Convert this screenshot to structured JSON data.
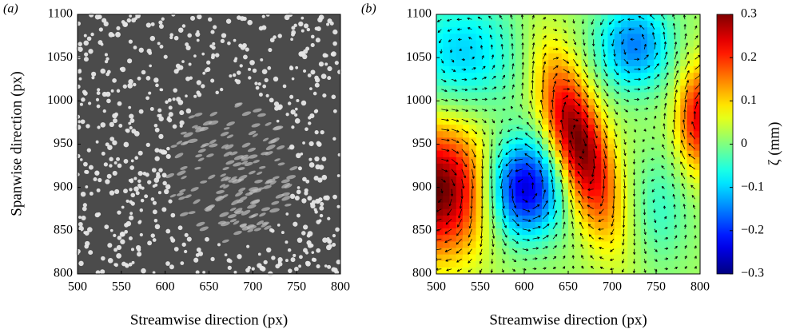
{
  "chart_data": [
    {
      "type": "image",
      "panel_label": "(a)",
      "xlabel": "Streamwise direction (px)",
      "ylabel": "Spanwise direction (px)",
      "xlim": [
        500,
        800
      ],
      "ylim": [
        800,
        1100
      ],
      "xticks": [
        500,
        550,
        600,
        650,
        700,
        750,
        800
      ],
      "yticks": [
        800,
        850,
        900,
        950,
        1000,
        1050,
        1100
      ]
    },
    {
      "type": "heatmap",
      "panel_label": "(b)",
      "xlabel": "Streamwise direction (px)",
      "xlim": [
        500,
        800
      ],
      "ylim": [
        800,
        1100
      ],
      "xticks": [
        500,
        550,
        600,
        650,
        700,
        750,
        800
      ],
      "yticks": [
        800,
        850,
        900,
        950,
        1000,
        1050,
        1100
      ],
      "colormap": "jet",
      "colorbar": {
        "label": "ζ (mm)",
        "lim": [
          -0.3,
          0.3
        ],
        "ticks": [
          0.3,
          0.2,
          0.1,
          0,
          {
            "value": -0.1,
            "label": "−0.1"
          },
          {
            "value": -0.2,
            "label": "−0.2"
          },
          {
            "value": -0.3,
            "label": "−0.3"
          }
        ]
      }
    }
  ]
}
